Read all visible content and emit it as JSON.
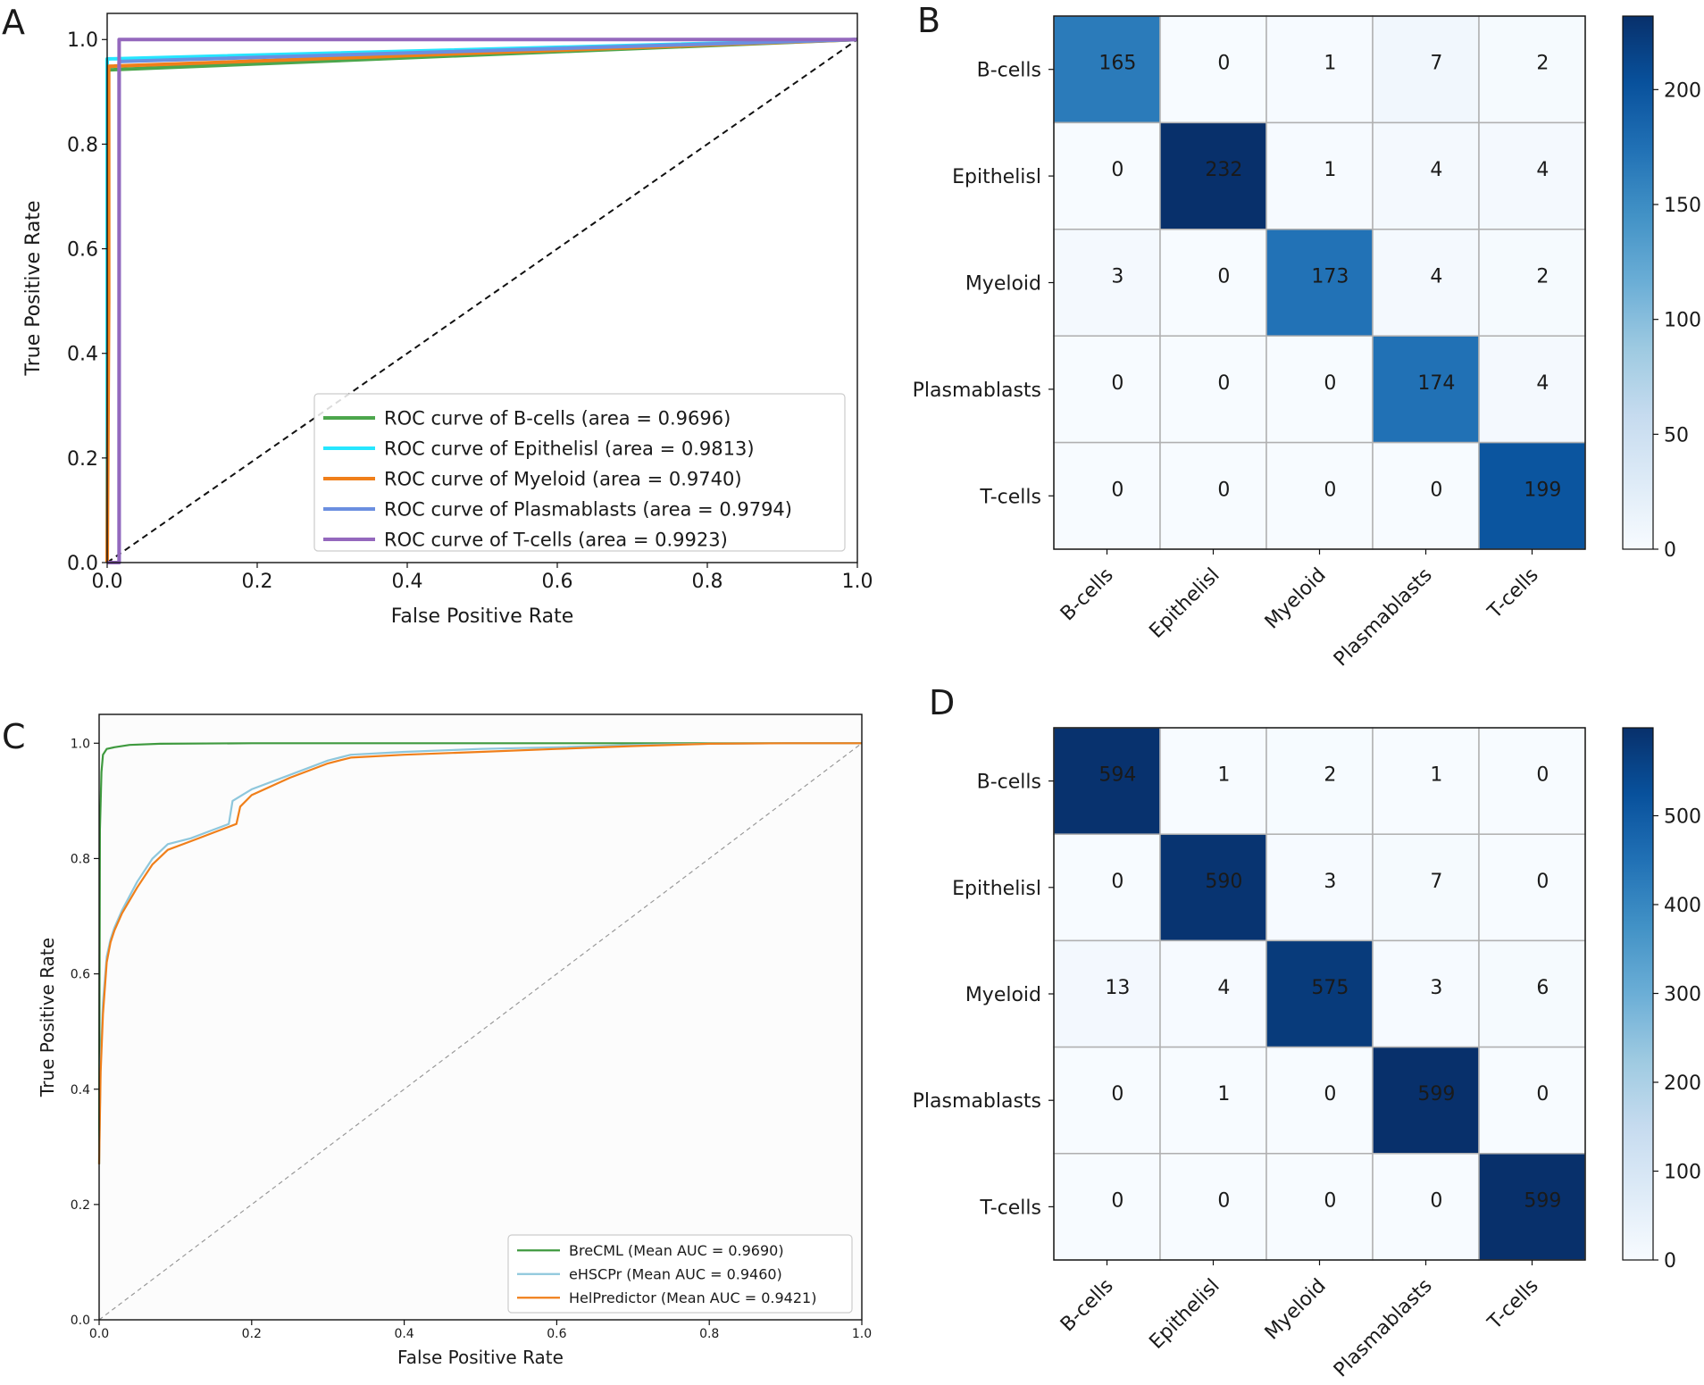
{
  "panels": {
    "A": {
      "letter": "A"
    },
    "B": {
      "letter": "B"
    },
    "C": {
      "letter": "C"
    },
    "D": {
      "letter": "D"
    }
  },
  "chart_data": [
    {
      "panel": "A",
      "type": "line",
      "title": "",
      "xlabel": "False Positive Rate",
      "ylabel": "True Positive Rate",
      "xlim": [
        0,
        1
      ],
      "ylim": [
        0,
        1.05
      ],
      "xticks": [
        0.0,
        0.2,
        0.4,
        0.6,
        0.8,
        1.0
      ],
      "xtick_labels": [
        "0.0",
        "0.2",
        "0.4",
        "0.6",
        "0.8",
        "1.0"
      ],
      "yticks": [
        0.0,
        0.2,
        0.4,
        0.6,
        0.8,
        1.0
      ],
      "ytick_labels": [
        "0.0",
        "0.2",
        "0.4",
        "0.6",
        "0.8",
        "1.0"
      ],
      "legend_position": "lower-right",
      "series": [
        {
          "name": "ROC curve of B-cells (area = 0.9696)",
          "color": "#4ca64c",
          "x": [
            0,
            0,
            1
          ],
          "y": [
            0,
            0.942,
            1
          ]
        },
        {
          "name": "ROC curve of Epithelisl (area = 0.9813)",
          "color": "#26e6ff",
          "x": [
            0,
            0,
            1
          ],
          "y": [
            0,
            0.963,
            1
          ]
        },
        {
          "name": "ROC curve of Myeloid (area = 0.9740)",
          "color": "#f07f1a",
          "x": [
            0,
            0.002,
            0.002,
            1
          ],
          "y": [
            0,
            0.5,
            0.949,
            1
          ]
        },
        {
          "name": "ROC curve of Plasmablasts (area = 0.9794)",
          "color": "#6b8fe0",
          "x": [
            0,
            0.016,
            0.016,
            1
          ],
          "y": [
            0,
            0,
            0.958,
            1
          ]
        },
        {
          "name": "ROC curve of T-cells (area = 0.9923)",
          "color": "#9468bd",
          "x": [
            0,
            0.016,
            0.016,
            0.016,
            1
          ],
          "y": [
            0,
            0,
            0.978,
            1.0,
            1
          ]
        }
      ],
      "diagonal": {
        "style": "dashed",
        "color": "#111111"
      }
    },
    {
      "panel": "B",
      "type": "heatmap",
      "row_labels": [
        "B-cells",
        "Epithelisl",
        "Myeloid",
        "Plasmablasts",
        "T-cells"
      ],
      "col_labels": [
        "B-cells",
        "Epithelisl",
        "Myeloid",
        "Plasmablasts",
        "T-cells"
      ],
      "matrix": [
        [
          165,
          0,
          1,
          7,
          2
        ],
        [
          0,
          232,
          1,
          4,
          4
        ],
        [
          3,
          0,
          173,
          4,
          2
        ],
        [
          0,
          0,
          0,
          174,
          4
        ],
        [
          0,
          0,
          0,
          0,
          199
        ]
      ],
      "colorbar": {
        "min": 0,
        "max": 232,
        "ticks": [
          0,
          50,
          100,
          150,
          200
        ],
        "tick_labels": [
          "0",
          "50",
          "100",
          "150",
          "200"
        ],
        "colormap": "Blues"
      }
    },
    {
      "panel": "C",
      "type": "line",
      "title": "",
      "xlabel": "False Positive Rate",
      "ylabel": "True Positive Rate",
      "xlim": [
        0,
        1
      ],
      "ylim": [
        0,
        1.05
      ],
      "xticks": [
        0.0,
        0.2,
        0.4,
        0.6,
        0.8,
        1.0
      ],
      "xtick_labels": [
        "0.0",
        "0.2",
        "0.4",
        "0.6",
        "0.8",
        "1.0"
      ],
      "yticks": [
        0.0,
        0.2,
        0.4,
        0.6,
        0.8,
        1.0
      ],
      "ytick_labels": [
        "0.0",
        "0.2",
        "0.4",
        "0.6",
        "0.8",
        "1.0"
      ],
      "legend_position": "lower-right",
      "series": [
        {
          "name": "BreCML (Mean AUC = 0.9690)",
          "color": "#3f9a3f",
          "x": [
            0,
            0.001,
            0.003,
            0.005,
            0.01,
            0.02,
            0.04,
            0.08,
            0.2,
            0.5,
            1.0
          ],
          "y": [
            0.27,
            0.85,
            0.95,
            0.98,
            0.99,
            0.993,
            0.997,
            0.999,
            1.0,
            1.0,
            1.0
          ]
        },
        {
          "name": "eHSCPr (Mean AUC = 0.9460)",
          "color": "#8ec7dc",
          "x": [
            0,
            0.002,
            0.005,
            0.01,
            0.015,
            0.02,
            0.03,
            0.05,
            0.07,
            0.09,
            0.12,
            0.15,
            0.17,
            0.175,
            0.2,
            0.25,
            0.3,
            0.33,
            0.4,
            0.5,
            0.6,
            0.7,
            0.8,
            0.9,
            1.0
          ],
          "y": [
            0.27,
            0.45,
            0.55,
            0.63,
            0.66,
            0.68,
            0.71,
            0.76,
            0.8,
            0.825,
            0.835,
            0.85,
            0.86,
            0.9,
            0.92,
            0.945,
            0.97,
            0.98,
            0.985,
            0.99,
            0.993,
            0.997,
            0.999,
            1.0,
            1.0
          ]
        },
        {
          "name": "HelPredictor (Mean AUC = 0.9421)",
          "color": "#f07f1a",
          "x": [
            0,
            0.002,
            0.005,
            0.01,
            0.015,
            0.02,
            0.03,
            0.05,
            0.07,
            0.09,
            0.12,
            0.15,
            0.18,
            0.185,
            0.2,
            0.25,
            0.3,
            0.33,
            0.4,
            0.5,
            0.6,
            0.7,
            0.8,
            0.9,
            1.0
          ],
          "y": [
            0.27,
            0.43,
            0.53,
            0.62,
            0.655,
            0.675,
            0.705,
            0.75,
            0.79,
            0.815,
            0.83,
            0.845,
            0.86,
            0.89,
            0.91,
            0.94,
            0.965,
            0.975,
            0.98,
            0.985,
            0.99,
            0.995,
            0.999,
            1.0,
            1.0
          ]
        }
      ],
      "diagonal": {
        "style": "dashed",
        "color": "#999999"
      }
    },
    {
      "panel": "D",
      "type": "heatmap",
      "row_labels": [
        "B-cells",
        "Epithelisl",
        "Myeloid",
        "Plasmablasts",
        "T-cells"
      ],
      "col_labels": [
        "B-cells",
        "Epithelisl",
        "Myeloid",
        "Plasmablasts",
        "T-cells"
      ],
      "matrix": [
        [
          594,
          1,
          2,
          1,
          0
        ],
        [
          0,
          590,
          3,
          7,
          0
        ],
        [
          13,
          4,
          575,
          3,
          6
        ],
        [
          0,
          1,
          0,
          599,
          0
        ],
        [
          0,
          0,
          0,
          0,
          599
        ]
      ],
      "colorbar": {
        "min": 0,
        "max": 599,
        "ticks": [
          0,
          100,
          200,
          300,
          400,
          500
        ],
        "tick_labels": [
          "0",
          "100",
          "200",
          "300",
          "400",
          "500"
        ],
        "colormap": "Blues"
      }
    }
  ]
}
